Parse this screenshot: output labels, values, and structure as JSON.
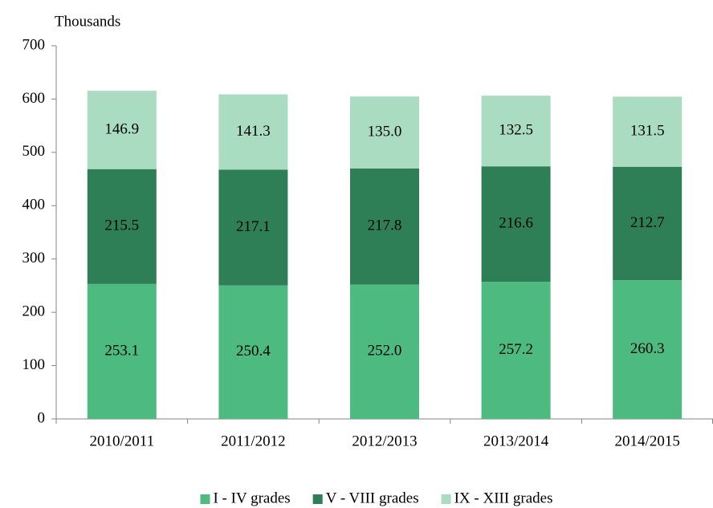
{
  "chart_data": {
    "type": "stacked_bar",
    "y_axis_label": "Thousands",
    "categories": [
      "2010/2011",
      "2011/2012",
      "2012/2013",
      "2013/2014",
      "2014/2015"
    ],
    "series": [
      {
        "name": "I - IV grades",
        "color": "#4dbb7f",
        "values": [
          253.1,
          250.4,
          252.0,
          257.2,
          260.3
        ],
        "value_labels": [
          "253.1",
          "250.4",
          "252.0",
          "257.2",
          "260.3"
        ]
      },
      {
        "name": "V - VIII grades",
        "color": "#2f7f56",
        "values": [
          215.5,
          217.1,
          217.8,
          216.6,
          212.7
        ],
        "value_labels": [
          "215.5",
          "217.1",
          "217.8",
          "216.6",
          "212.7"
        ]
      },
      {
        "name": "IX - XIII grades",
        "color": "#a9dcc0",
        "values": [
          146.9,
          141.3,
          135.0,
          132.5,
          131.5
        ],
        "value_labels": [
          "146.9",
          "141.3",
          "135.0",
          "132.5",
          "131.5"
        ]
      }
    ],
    "ylim": [
      0,
      700
    ],
    "yticks": [
      0,
      100,
      200,
      300,
      400,
      500,
      600,
      700
    ],
    "grid": false,
    "legend": "bottom"
  }
}
